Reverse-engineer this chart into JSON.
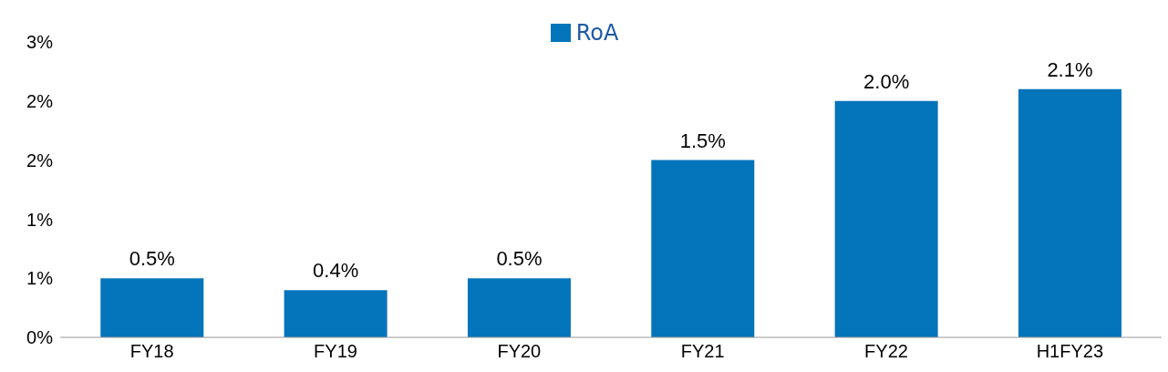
{
  "chart_data": {
    "type": "bar",
    "categories": [
      "FY18",
      "FY19",
      "FY20",
      "FY21",
      "FY22",
      "H1FY23"
    ],
    "series": [
      {
        "name": "RoA",
        "color": "#0474bb",
        "values": [
          0.5,
          0.4,
          0.5,
          1.5,
          2.0,
          2.1
        ],
        "value_labels": [
          "0.5%",
          "0.4%",
          "0.5%",
          "1.5%",
          "2.0%",
          "2.1%"
        ]
      }
    ],
    "ylim": [
      0,
      2.5
    ],
    "yticks": [
      {
        "value": 0,
        "label": "0%"
      },
      {
        "value": 0.5,
        "label": "1%"
      },
      {
        "value": 1,
        "label": "1%"
      },
      {
        "value": 1.5,
        "label": "2%"
      },
      {
        "value": 2,
        "label": "2%"
      },
      {
        "value": 2.5,
        "label": "3%"
      }
    ],
    "grid": false,
    "legend": "top"
  }
}
